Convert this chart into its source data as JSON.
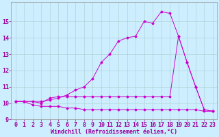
{
  "xlabel": "Windchill (Refroidissement éolien,°C)",
  "bg_color": "#cceeff",
  "grid_color": "#aacccc",
  "line_color": "#cc00cc",
  "x_min": 0,
  "x_max": 23,
  "y_min": 9,
  "y_max": 16,
  "line1_x": [
    0,
    1,
    2,
    3,
    4,
    5,
    6,
    7,
    8,
    9,
    10,
    11,
    12,
    13,
    14,
    15,
    16,
    17,
    18,
    19,
    20,
    21,
    22,
    23
  ],
  "line1_y": [
    10.1,
    10.1,
    10.1,
    10.0,
    10.3,
    10.4,
    10.4,
    10.4,
    10.4,
    10.4,
    10.4,
    10.4,
    10.4,
    10.4,
    10.4,
    10.4,
    10.4,
    10.4,
    10.4,
    14.1,
    12.5,
    11.0,
    9.6,
    9.5
  ],
  "line2_x": [
    0,
    1,
    2,
    3,
    4,
    5,
    6,
    7,
    8,
    9,
    10,
    11,
    12,
    13,
    14,
    15,
    16,
    17,
    18,
    19,
    20,
    21,
    22,
    23
  ],
  "line2_y": [
    10.1,
    10.1,
    9.9,
    9.8,
    9.8,
    9.8,
    9.7,
    9.7,
    9.6,
    9.6,
    9.6,
    9.6,
    9.6,
    9.6,
    9.6,
    9.6,
    9.6,
    9.6,
    9.6,
    9.6,
    9.6,
    9.6,
    9.5,
    9.5
  ],
  "line3_x": [
    0,
    1,
    2,
    3,
    4,
    5,
    6,
    7,
    8,
    9,
    10,
    11,
    12,
    13,
    14,
    15,
    16,
    17,
    18,
    19,
    20,
    21,
    22,
    23
  ],
  "line3_y": [
    10.1,
    10.1,
    10.1,
    10.1,
    10.2,
    10.3,
    10.5,
    10.8,
    11.0,
    11.5,
    12.5,
    13.0,
    13.8,
    14.0,
    14.1,
    15.0,
    14.9,
    15.6,
    15.5,
    14.1,
    12.5,
    11.0,
    9.6,
    9.5
  ],
  "xlabel_fontsize": 6,
  "tick_fontsize": 6
}
